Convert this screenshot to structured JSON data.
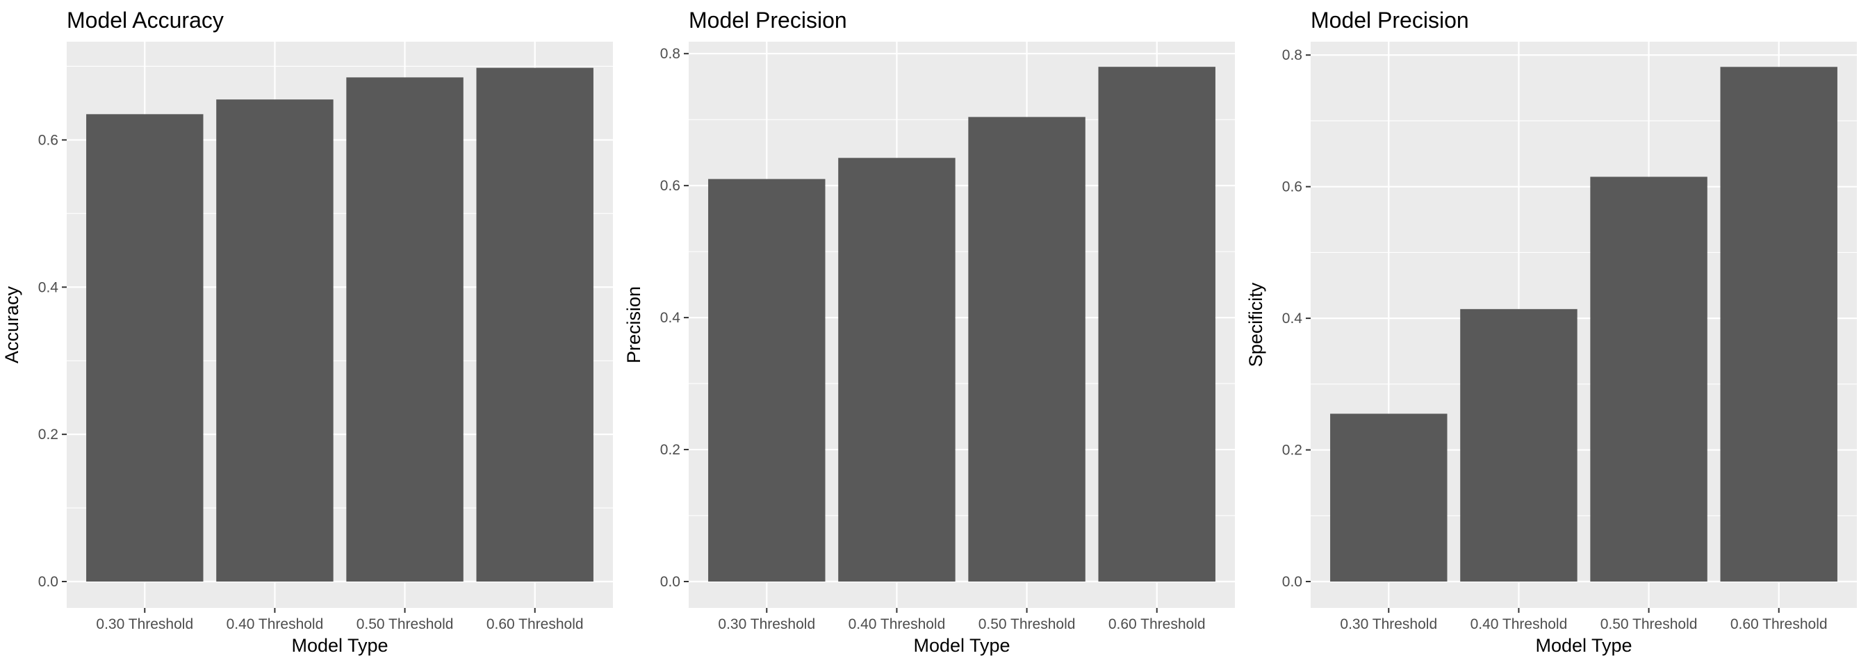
{
  "chart_data": [
    {
      "type": "bar",
      "title": "Model Accuracy",
      "xlabel": "Model Type",
      "ylabel": "Accuracy",
      "categories": [
        "0.30 Threshold",
        "0.40 Threshold",
        "0.50 Threshold",
        "0.60 Threshold"
      ],
      "values": [
        0.635,
        0.655,
        0.685,
        0.698
      ],
      "ylim": [
        0,
        0.7335
      ],
      "yticks": [
        0.0,
        0.2,
        0.4,
        0.6
      ],
      "ytick_labels": [
        "0.0",
        "0.2",
        "0.4",
        "0.6"
      ],
      "grid": true,
      "legend": "none",
      "bar_color": "#595959",
      "panel_color": "#EBEBEB"
    },
    {
      "type": "bar",
      "title": "Model Precision",
      "xlabel": "Model Type",
      "ylabel": "Precision",
      "categories": [
        "0.30 Threshold",
        "0.40 Threshold",
        "0.50 Threshold",
        "0.60 Threshold"
      ],
      "values": [
        0.61,
        0.642,
        0.704,
        0.78
      ],
      "ylim": [
        0,
        0.8181
      ],
      "yticks": [
        0.0,
        0.2,
        0.4,
        0.6,
        0.8
      ],
      "ytick_labels": [
        "0.0",
        "0.2",
        "0.4",
        "0.6",
        "0.8"
      ],
      "grid": true,
      "legend": "none",
      "bar_color": "#595959",
      "panel_color": "#EBEBEB"
    },
    {
      "type": "bar",
      "title": "Model Precision",
      "xlabel": "Model Type",
      "ylabel": "Specificity",
      "categories": [
        "0.30 Threshold",
        "0.40 Threshold",
        "0.50 Threshold",
        "0.60 Threshold"
      ],
      "values": [
        0.255,
        0.414,
        0.615,
        0.782
      ],
      "ylim": [
        0,
        0.8203
      ],
      "yticks": [
        0.0,
        0.2,
        0.4,
        0.6,
        0.8
      ],
      "ytick_labels": [
        "0.0",
        "0.2",
        "0.4",
        "0.6",
        "0.8"
      ],
      "grid": true,
      "legend": "none",
      "bar_color": "#595959",
      "panel_color": "#EBEBEB"
    }
  ]
}
